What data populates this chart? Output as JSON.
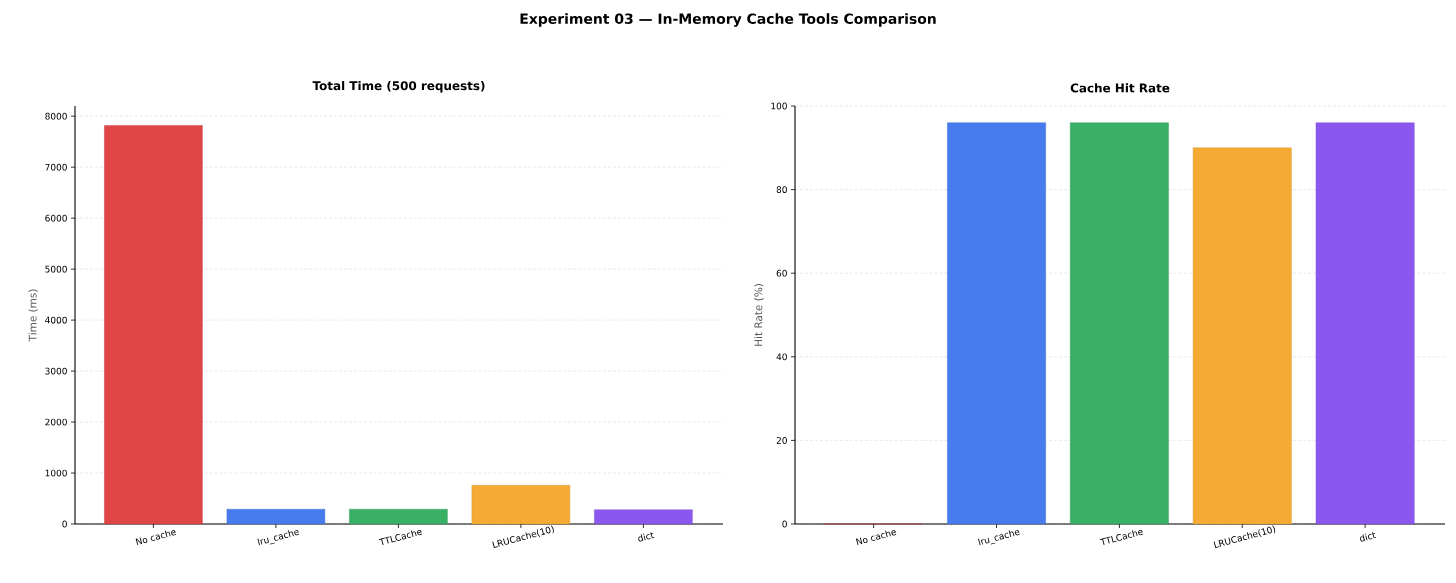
{
  "chart_data": [
    {
      "type": "bar",
      "title": "Total Time (500 requests)",
      "ylabel": "Time (ms)",
      "annotations": [
        "Experiment 03 — In-Memory Cache Tools Comparison"
      ],
      "categories": [
        "No cache",
        "lru_cache",
        "TTLCache",
        "LRUCache(10)",
        "dict"
      ],
      "values": [
        7820,
        290,
        290,
        760,
        280
      ],
      "colors": [
        "#e04545",
        "#477bee",
        "#3aaf66",
        "#f4aa33",
        "#8c57ee"
      ],
      "ylim": [
        0,
        8200
      ],
      "yticks": [
        0,
        1000,
        2000,
        3000,
        4000,
        5000,
        6000,
        7000,
        8000
      ],
      "grid": "y"
    },
    {
      "type": "bar",
      "title": "Cache Hit Rate",
      "ylabel": "Hit Rate (%)",
      "categories": [
        "No cache",
        "lru_cache",
        "TTLCache",
        "LRUCache(10)",
        "dict"
      ],
      "values": [
        0,
        96,
        96,
        90,
        96
      ],
      "colors": [
        "#e04545",
        "#477bee",
        "#3aaf66",
        "#f4aa33",
        "#8c57ee"
      ],
      "ylim": [
        0,
        100
      ],
      "yticks": [
        0,
        20,
        40,
        60,
        80,
        100
      ],
      "grid": "y"
    }
  ]
}
